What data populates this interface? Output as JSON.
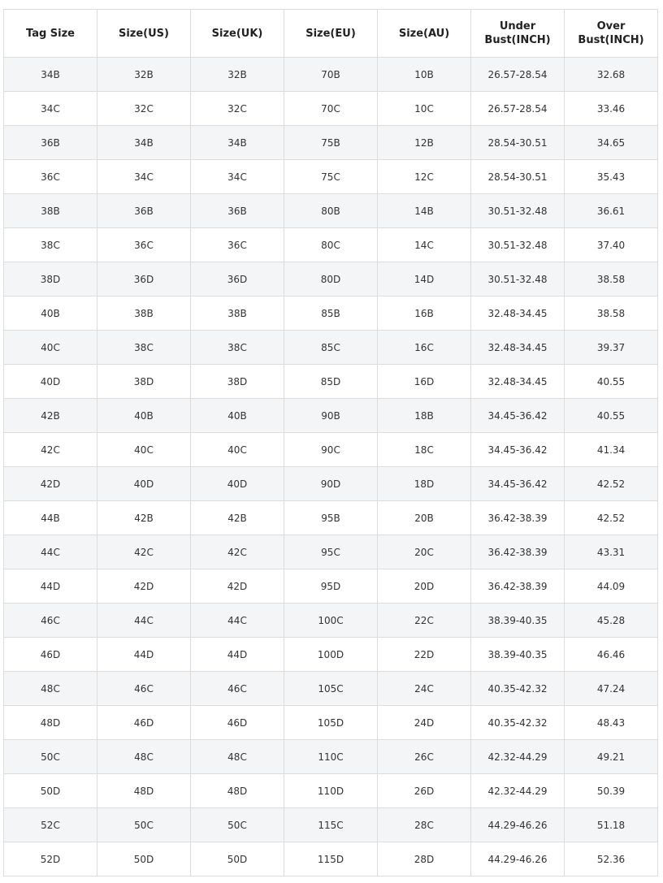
{
  "table": {
    "headers": [
      "Tag Size",
      "Size(US)",
      "Size(UK)",
      "Size(EU)",
      "Size(AU)",
      "Under\nBust(INCH)",
      "Over\nBust(INCH)"
    ],
    "rows": [
      [
        "34B",
        "32B",
        "32B",
        "70B",
        "10B",
        "26.57-28.54",
        "32.68"
      ],
      [
        "34C",
        "32C",
        "32C",
        "70C",
        "10C",
        "26.57-28.54",
        "33.46"
      ],
      [
        "36B",
        "34B",
        "34B",
        "75B",
        "12B",
        "28.54-30.51",
        "34.65"
      ],
      [
        "36C",
        "34C",
        "34C",
        "75C",
        "12C",
        "28.54-30.51",
        "35.43"
      ],
      [
        "38B",
        "36B",
        "36B",
        "80B",
        "14B",
        "30.51-32.48",
        "36.61"
      ],
      [
        "38C",
        "36C",
        "36C",
        "80C",
        "14C",
        "30.51-32.48",
        "37.40"
      ],
      [
        "38D",
        "36D",
        "36D",
        "80D",
        "14D",
        "30.51-32.48",
        "38.58"
      ],
      [
        "40B",
        "38B",
        "38B",
        "85B",
        "16B",
        "32.48-34.45",
        "38.58"
      ],
      [
        "40C",
        "38C",
        "38C",
        "85C",
        "16C",
        "32.48-34.45",
        "39.37"
      ],
      [
        "40D",
        "38D",
        "38D",
        "85D",
        "16D",
        "32.48-34.45",
        "40.55"
      ],
      [
        "42B",
        "40B",
        "40B",
        "90B",
        "18B",
        "34.45-36.42",
        "40.55"
      ],
      [
        "42C",
        "40C",
        "40C",
        "90C",
        "18C",
        "34.45-36.42",
        "41.34"
      ],
      [
        "42D",
        "40D",
        "40D",
        "90D",
        "18D",
        "34.45-36.42",
        "42.52"
      ],
      [
        "44B",
        "42B",
        "42B",
        "95B",
        "20B",
        "36.42-38.39",
        "42.52"
      ],
      [
        "44C",
        "42C",
        "42C",
        "95C",
        "20C",
        "36.42-38.39",
        "43.31"
      ],
      [
        "44D",
        "42D",
        "42D",
        "95D",
        "20D",
        "36.42-38.39",
        "44.09"
      ],
      [
        "46C",
        "44C",
        "44C",
        "100C",
        "22C",
        "38.39-40.35",
        "45.28"
      ],
      [
        "46D",
        "44D",
        "44D",
        "100D",
        "22D",
        "38.39-40.35",
        "46.46"
      ],
      [
        "48C",
        "46C",
        "46C",
        "105C",
        "24C",
        "40.35-42.32",
        "47.24"
      ],
      [
        "48D",
        "46D",
        "46D",
        "105D",
        "24D",
        "40.35-42.32",
        "48.43"
      ],
      [
        "50C",
        "48C",
        "48C",
        "110C",
        "26C",
        "42.32-44.29",
        "49.21"
      ],
      [
        "50D",
        "48D",
        "48D",
        "110D",
        "26D",
        "42.32-44.29",
        "50.39"
      ],
      [
        "52C",
        "50C",
        "50C",
        "115C",
        "28C",
        "44.29-46.26",
        "51.18"
      ],
      [
        "52D",
        "50D",
        "50D",
        "115D",
        "28D",
        "44.29-46.26",
        "52.36"
      ]
    ]
  }
}
